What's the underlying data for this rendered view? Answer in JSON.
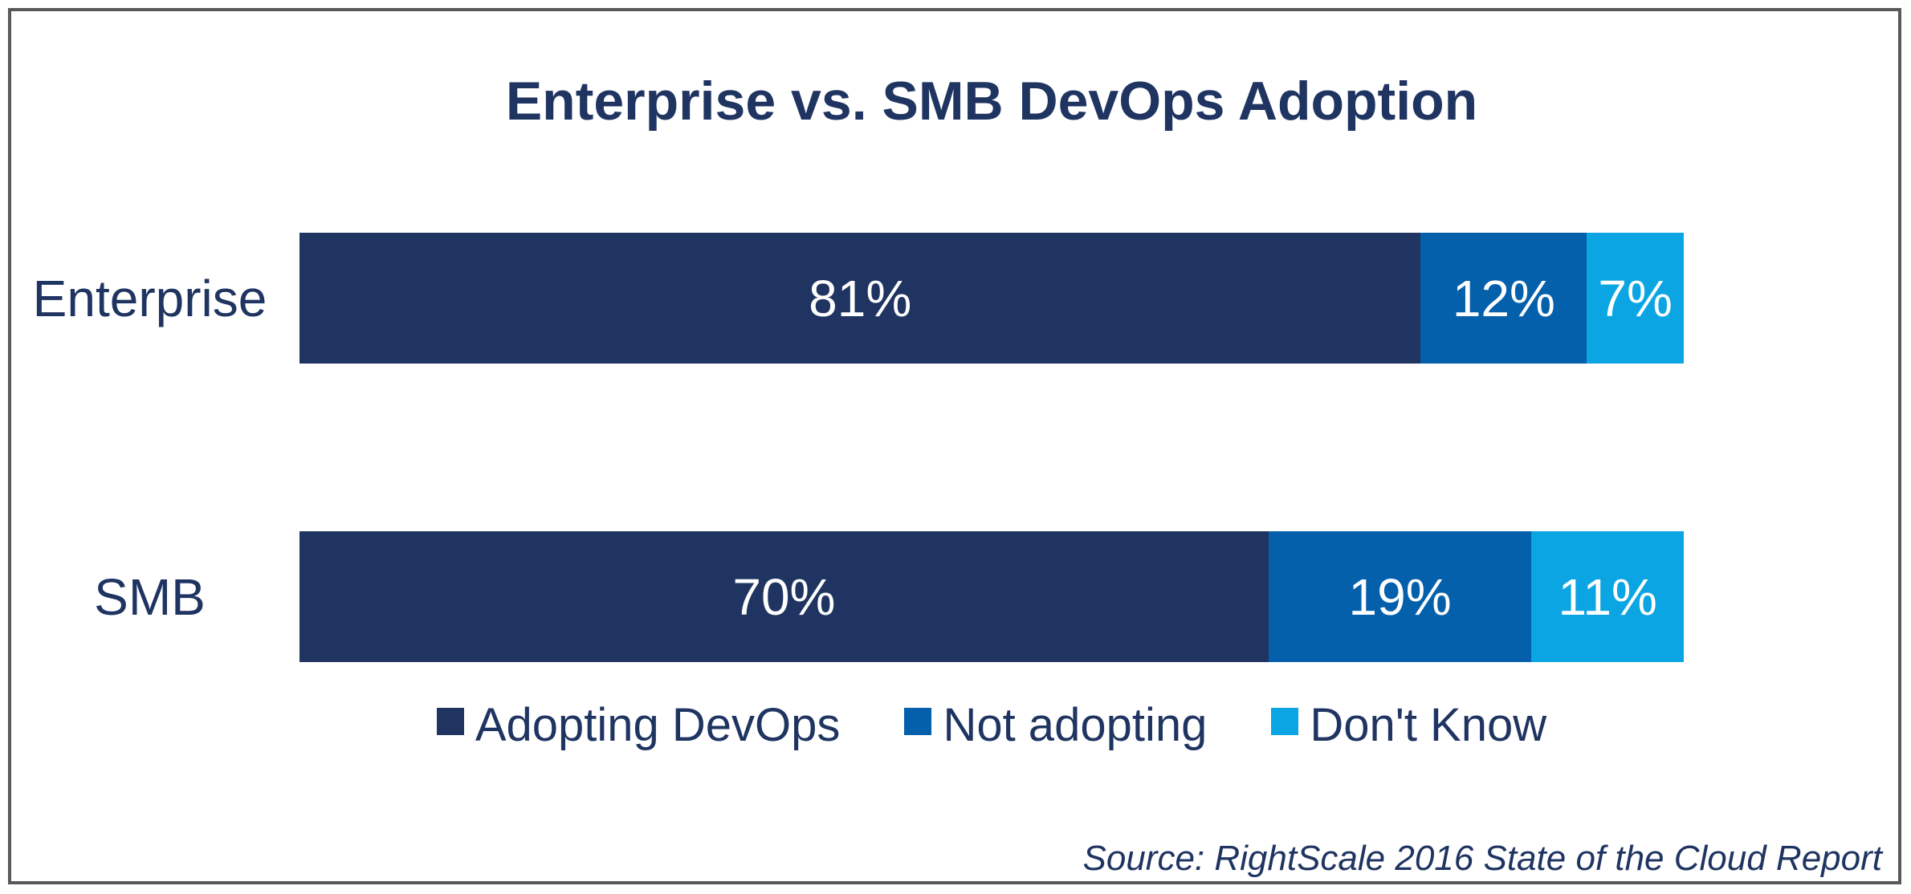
{
  "title": "Enterprise vs. SMB DevOps Adoption",
  "source": "Source: RightScale 2016 State of the Cloud Report",
  "colors": {
    "navy": "#1F3461",
    "blue": "#0560AC",
    "cyan": "#0AA5E2",
    "frame_border": "#58595B",
    "value_label": "#FFFFFF",
    "background": "#FFFFFF"
  },
  "chart_data": {
    "type": "bar",
    "orientation": "horizontal",
    "stacked": true,
    "title": "Enterprise vs. SMB DevOps Adoption",
    "categories": [
      "Enterprise",
      "SMB"
    ],
    "series": [
      {
        "name": "Adopting DevOps",
        "color": "#1F3461",
        "values": [
          81,
          70
        ],
        "labels": [
          "81%",
          "70%"
        ]
      },
      {
        "name": "Not adopting",
        "color": "#0560AC",
        "values": [
          12,
          19
        ],
        "labels": [
          "12%",
          "19%"
        ]
      },
      {
        "name": "Don't Know",
        "color": "#0AA5E2",
        "values": [
          7,
          11
        ],
        "labels": [
          "7%",
          "11%"
        ]
      }
    ],
    "xlim": [
      0,
      100
    ],
    "grid": false,
    "axis_ticks": "none",
    "legend_position": "bottom-center",
    "value_labels_inside": true,
    "annotation": "Source: RightScale 2016 State of the Cloud Report"
  }
}
